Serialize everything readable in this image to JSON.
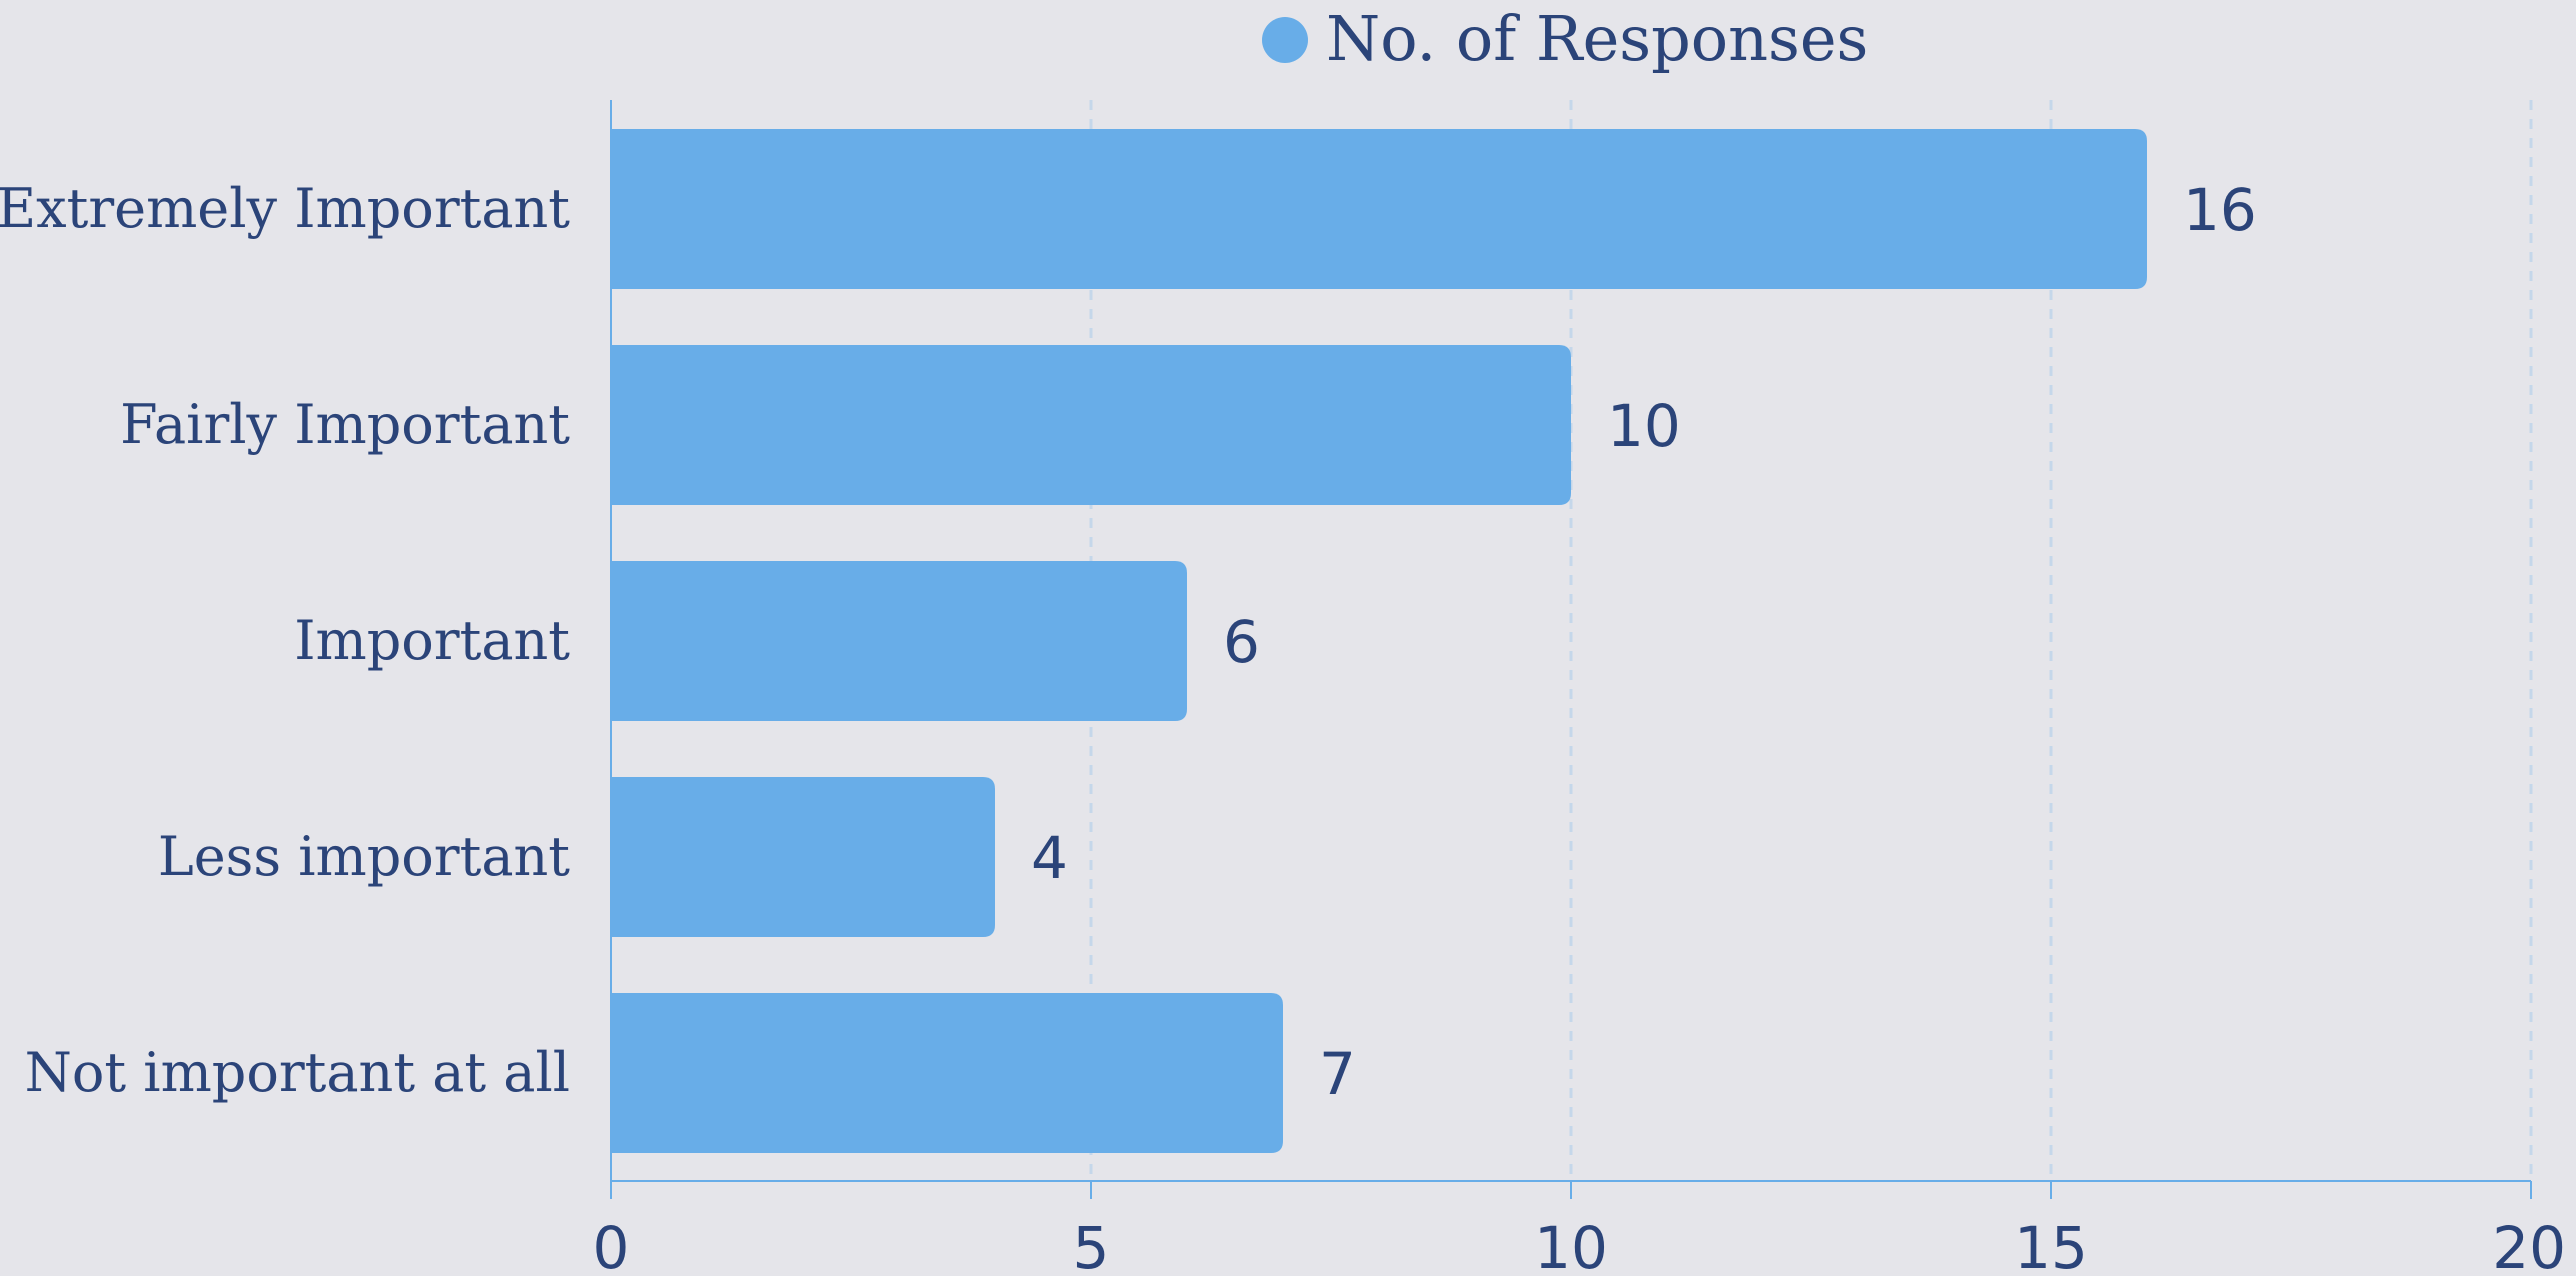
{
  "chart_data": {
    "type": "bar",
    "orientation": "horizontal",
    "categories": [
      "Extremely Important",
      "Fairly Important",
      "Important",
      "Less important",
      "Not important at all"
    ],
    "series": [
      {
        "name": "No. of Responses",
        "values": [
          16,
          10,
          6,
          4,
          7
        ]
      }
    ],
    "xlim": [
      0,
      20
    ],
    "xticks": [
      0,
      5,
      10,
      15,
      20
    ],
    "grid": "vertical dashed",
    "legend": "top-center",
    "data_labels": true
  },
  "colors": {
    "background": "#e5e5ea",
    "bar": "#68ade8",
    "text": "#2b4479",
    "axis": "#68ade8",
    "grid": "#c5d7ea"
  }
}
